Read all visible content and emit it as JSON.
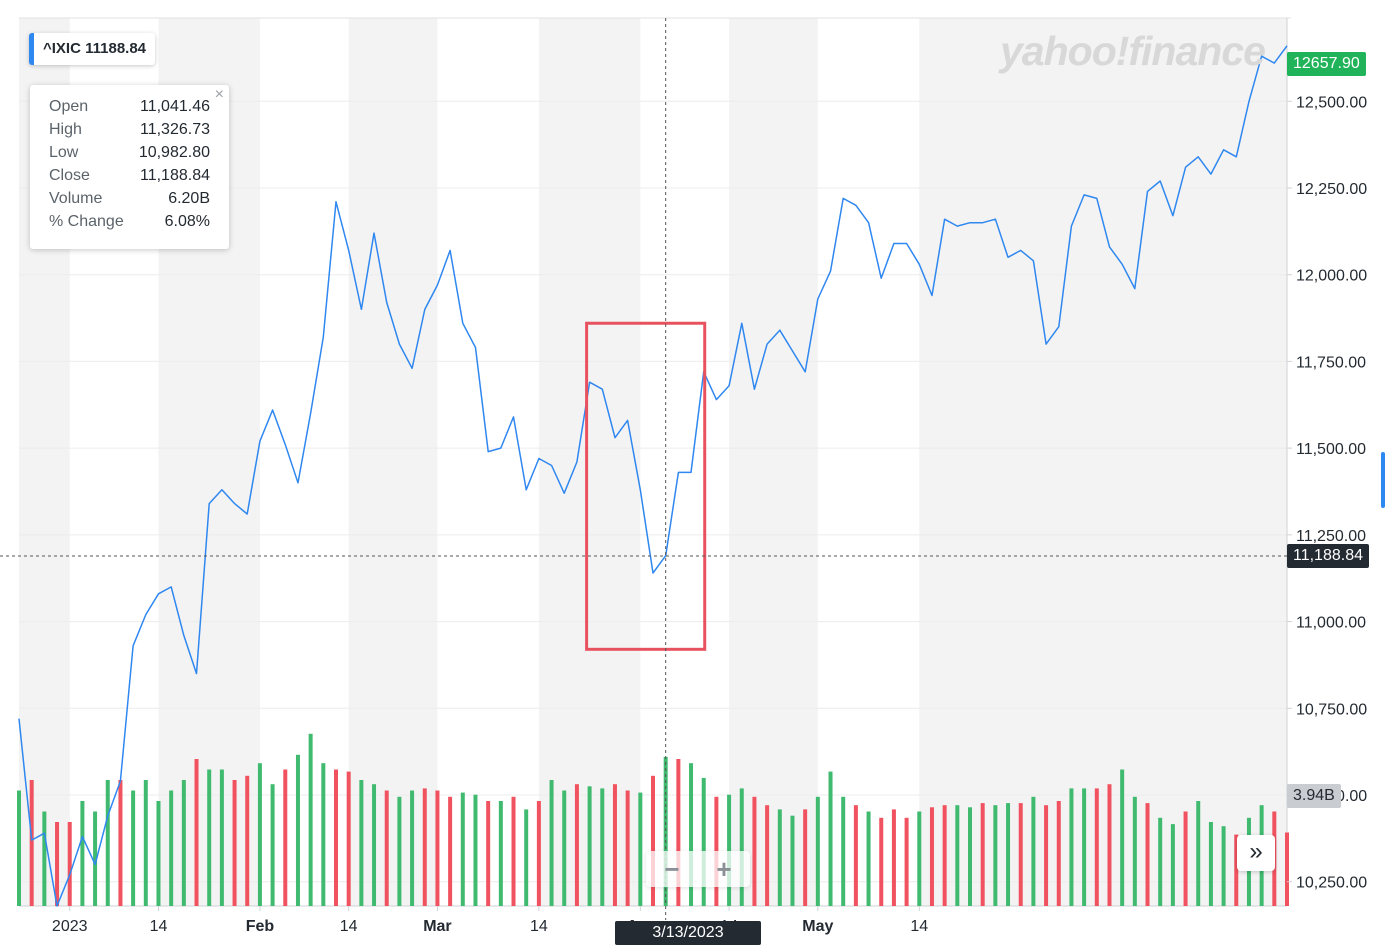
{
  "symbol_badge": "^IXIC 11188.84",
  "brand": "yahoo!finance",
  "tooltip": {
    "rows": [
      {
        "label": "Open",
        "value": "11,041.46"
      },
      {
        "label": "High",
        "value": "11,326.73"
      },
      {
        "label": "Low",
        "value": "10,982.80"
      },
      {
        "label": "Close",
        "value": "11,188.84"
      },
      {
        "label": "Volume",
        "value": "6.20B"
      },
      {
        "label": "% Change",
        "value": "6.08%"
      }
    ],
    "close_icon": "close-icon"
  },
  "last_price_label": "12657.90",
  "crosshair_price_label": "11,188.84",
  "crosshair_date_label": "3/13/2023",
  "volume_label": "3.94B",
  "zoom": {
    "minus": "−",
    "plus": "+"
  },
  "forward_label": "»",
  "colors": {
    "line": "#2f87f0",
    "up_volume": "#3fba6f",
    "down_volume": "#f0525f",
    "last_price_bg": "#21b35a",
    "crosshair_bg": "#232a31",
    "volume_label_bg": "#c9ccd1",
    "highlight_box": "#e8525f",
    "band": "#f3f3f3"
  },
  "chart_data": {
    "type": "line",
    "series": [
      {
        "values": [
          10720,
          10370,
          10390,
          10180,
          10270,
          10380,
          10300,
          10440,
          10540,
          10930,
          11020,
          11080,
          11100,
          10960,
          10850,
          11340,
          11380,
          11340,
          11310,
          11520,
          11610,
          11510,
          11400,
          11600,
          11820,
          12210,
          12070,
          11900,
          12120,
          11920,
          11800,
          11730,
          11900,
          11970,
          12070,
          11860,
          11790,
          11490,
          11500,
          11590,
          11380,
          11470,
          11450,
          11370,
          11460,
          11690,
          11670,
          11530,
          11580,
          11380,
          11140,
          11190,
          11430,
          11430,
          11720,
          11640,
          11680,
          11860,
          11670,
          11800,
          11840,
          11780,
          11720,
          11930,
          12010,
          12220,
          12200,
          12150,
          11990,
          12090,
          12090,
          12030,
          11940,
          12160,
          12140,
          12150,
          12150,
          12160,
          12050,
          12070,
          12040,
          11800,
          11850,
          12140,
          12230,
          12220,
          12080,
          12030,
          11960,
          12240,
          12270,
          12170,
          12310,
          12340,
          12290,
          12360,
          12340,
          12500,
          12630,
          12610,
          12660
        ]
      }
    ],
    "volume_up": [
      true,
      false,
      true,
      false,
      false,
      true,
      true,
      true,
      false,
      true,
      true,
      true,
      true,
      true,
      false,
      true,
      true,
      false,
      false,
      true,
      true,
      false,
      true,
      true,
      true,
      false,
      false,
      true,
      true,
      false,
      true,
      true,
      false,
      false,
      false,
      true,
      true,
      false,
      true,
      false,
      true,
      false,
      true,
      true,
      false,
      true,
      true,
      false,
      false,
      true,
      false,
      true,
      false,
      true,
      true,
      false,
      true,
      true,
      false,
      false,
      true,
      true,
      false,
      true,
      true,
      true,
      false,
      true,
      false,
      false,
      false,
      true,
      false,
      false,
      true,
      true,
      false,
      true,
      true,
      false,
      true,
      false,
      false,
      true,
      true,
      false,
      false,
      true,
      true,
      false,
      true,
      true,
      false,
      true,
      true,
      true,
      false,
      true,
      true,
      false,
      false
    ],
    "volume_relative": [
      0.55,
      0.6,
      0.45,
      0.4,
      0.4,
      0.5,
      0.45,
      0.6,
      0.6,
      0.55,
      0.6,
      0.5,
      0.55,
      0.6,
      0.7,
      0.65,
      0.65,
      0.6,
      0.62,
      0.68,
      0.58,
      0.65,
      0.72,
      0.82,
      0.68,
      0.65,
      0.64,
      0.6,
      0.58,
      0.55,
      0.52,
      0.55,
      0.56,
      0.55,
      0.52,
      0.54,
      0.53,
      0.5,
      0.5,
      0.52,
      0.46,
      0.5,
      0.6,
      0.55,
      0.58,
      0.57,
      0.56,
      0.58,
      0.55,
      0.54,
      0.62,
      0.71,
      0.7,
      0.68,
      0.61,
      0.52,
      0.53,
      0.56,
      0.52,
      0.48,
      0.46,
      0.43,
      0.46,
      0.52,
      0.64,
      0.52,
      0.48,
      0.45,
      0.42,
      0.46,
      0.42,
      0.45,
      0.47,
      0.48,
      0.48,
      0.47,
      0.49,
      0.48,
      0.49,
      0.49,
      0.52,
      0.48,
      0.5,
      0.56,
      0.56,
      0.56,
      0.58,
      0.65,
      0.52,
      0.49,
      0.42,
      0.39,
      0.45,
      0.5,
      0.4,
      0.38,
      0.34,
      0.42,
      0.48,
      0.45,
      0.35
    ],
    "ylim": [
      10180,
      12740
    ],
    "y_ticks": [
      "12,500.00",
      "12,250.00",
      "12,000.00",
      "11,750.00",
      "11,500.00",
      "11,250.00",
      "11,000.00",
      "10,750.00",
      "10,500.00",
      "10,250.00"
    ],
    "y_tick_values": [
      12500,
      12250,
      12000,
      11750,
      11500,
      11250,
      11000,
      10750,
      10500,
      10250
    ],
    "x_ticks": [
      "2023",
      "14",
      "Feb",
      "14",
      "Mar",
      "14",
      "Apr",
      "14",
      "May",
      "14"
    ],
    "x_tick_index": [
      4,
      11,
      19,
      26,
      33,
      41,
      49,
      56,
      63,
      71
    ],
    "crosshair_index": 51,
    "crosshair_value": 11188.84,
    "highlight_index_range": [
      45,
      54
    ],
    "highlight_value_range": [
      10920,
      11860
    ],
    "grid": true,
    "legend": "none"
  }
}
